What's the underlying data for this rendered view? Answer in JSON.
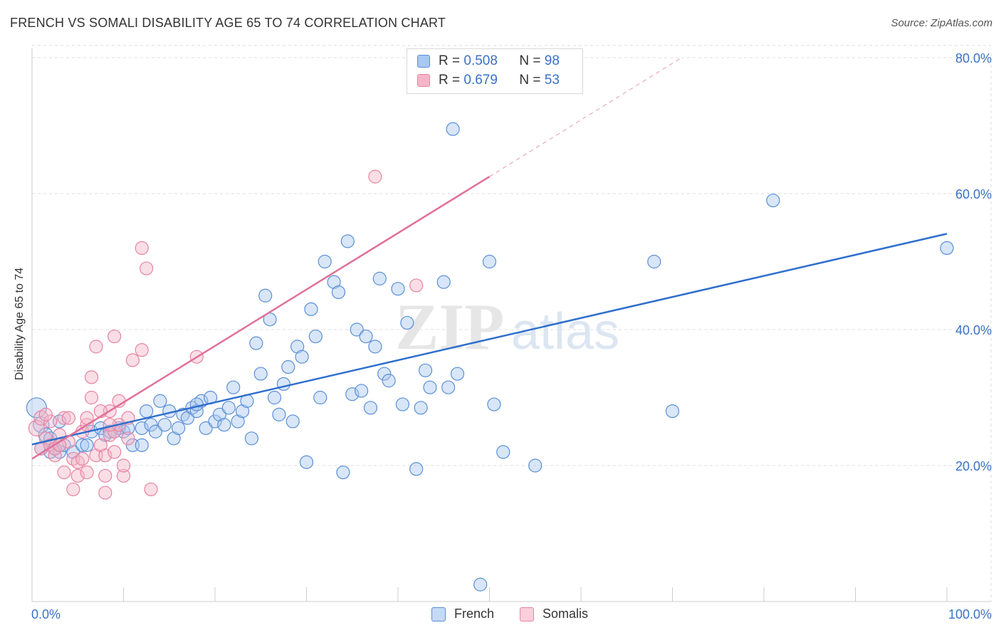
{
  "title": "FRENCH VS SOMALI DISABILITY AGE 65 TO 74 CORRELATION CHART",
  "source": "Source: ZipAtlas.com",
  "watermark": {
    "zip": "ZIP",
    "atlas": "atlas"
  },
  "legend_top": [
    {
      "r_label": "R =",
      "r_value": "0.508",
      "n_label": "N =",
      "n_value": "98"
    },
    {
      "r_label": "R =",
      "r_value": "0.679",
      "n_label": "N =",
      "n_value": "53"
    }
  ],
  "legend_bottom": [
    {
      "label": "French"
    },
    {
      "label": "Somalis"
    }
  ],
  "colors": {
    "french_fill": "#a9c7ef",
    "french_stroke": "#5b8fd6",
    "french_line": "#2f6fcc",
    "somali_fill": "#f5b5c8",
    "somali_stroke": "#e683a3",
    "somali_line": "#e0709a",
    "tick_label": "#3a72c4",
    "grid": "#dcdcdc"
  },
  "chart_data": {
    "type": "scatter",
    "title": "FRENCH VS SOMALI DISABILITY AGE 65 TO 74 CORRELATION CHART",
    "xlabel": "",
    "ylabel": "Disability Age 65 to 74",
    "xlim": [
      0,
      100
    ],
    "ylim": [
      0,
      82
    ],
    "x_tick_labels": [
      {
        "value": 0,
        "label": "0.0%"
      },
      {
        "value": 100,
        "label": "100.0%"
      }
    ],
    "y_tick_labels": [
      {
        "value": 20,
        "label": "20.0%"
      },
      {
        "value": 40,
        "label": "40.0%"
      },
      {
        "value": 60,
        "label": "60.0%"
      },
      {
        "value": 80,
        "label": "80.0%"
      }
    ],
    "x_minor_ticks": [
      0,
      10,
      20,
      30,
      40,
      50,
      60,
      70,
      80,
      90,
      100
    ],
    "grid": true,
    "legend_position": "top-center",
    "series": [
      {
        "name": "French",
        "r": 0.508,
        "n": 98,
        "trendline": {
          "x": [
            0,
            100
          ],
          "y": [
            23.1,
            54.1
          ],
          "style": "solid"
        },
        "points": [
          [
            0.5,
            28.5,
            14
          ],
          [
            1,
            26,
            11
          ],
          [
            1.5,
            24.5,
            10
          ],
          [
            1,
            22.5,
            9
          ],
          [
            2,
            22,
            9
          ],
          [
            2.5,
            22.5,
            9
          ],
          [
            3,
            22,
            9
          ],
          [
            3.5,
            23,
            9
          ],
          [
            4.5,
            22,
            9
          ],
          [
            5.5,
            23,
            9
          ],
          [
            6,
            23,
            9
          ],
          [
            6.5,
            25,
            9
          ],
          [
            7.5,
            25.5,
            9
          ],
          [
            8,
            24.5,
            9
          ],
          [
            8.5,
            25,
            9
          ],
          [
            9.5,
            25.5,
            9
          ],
          [
            10,
            25,
            9
          ],
          [
            10.5,
            25.5,
            9
          ],
          [
            11,
            23,
            9
          ],
          [
            12,
            25.5,
            9
          ],
          [
            12,
            23,
            9
          ],
          [
            12.5,
            28,
            9
          ],
          [
            13,
            26,
            9
          ],
          [
            13.5,
            25,
            9
          ],
          [
            14,
            29.5,
            9
          ],
          [
            14.5,
            26,
            9
          ],
          [
            15,
            28,
            9
          ],
          [
            15.5,
            24,
            9
          ],
          [
            16,
            25.5,
            9
          ],
          [
            16.5,
            27.5,
            9
          ],
          [
            17,
            27,
            9
          ],
          [
            17.5,
            28.5,
            9
          ],
          [
            18,
            28,
            9
          ],
          [
            18.5,
            29.5,
            9
          ],
          [
            19,
            25.5,
            9
          ],
          [
            19.5,
            30,
            9
          ],
          [
            20,
            26.5,
            9
          ],
          [
            20.5,
            27.5,
            9
          ],
          [
            21,
            26,
            9
          ],
          [
            21.5,
            28.5,
            9
          ],
          [
            22,
            31.5,
            9
          ],
          [
            22.5,
            26.5,
            9
          ],
          [
            23,
            28,
            9
          ],
          [
            23.5,
            29.5,
            9
          ],
          [
            24,
            24,
            9
          ],
          [
            24.5,
            38,
            9
          ],
          [
            25,
            33.5,
            9
          ],
          [
            25.5,
            45,
            9
          ],
          [
            26,
            41.5,
            9
          ],
          [
            26.5,
            30,
            9
          ],
          [
            27,
            27.5,
            9
          ],
          [
            27.5,
            32,
            9
          ],
          [
            28,
            34.5,
            9
          ],
          [
            28.5,
            26.5,
            9
          ],
          [
            29,
            37.5,
            9
          ],
          [
            29.5,
            36,
            9
          ],
          [
            30,
            20.5,
            9
          ],
          [
            30.5,
            43,
            9
          ],
          [
            31,
            39,
            9
          ],
          [
            31.5,
            30,
            9
          ],
          [
            32,
            50,
            9
          ],
          [
            33,
            47,
            9
          ],
          [
            33.5,
            45.5,
            9
          ],
          [
            34,
            19,
            9
          ],
          [
            34.5,
            53,
            9
          ],
          [
            35,
            30.5,
            9
          ],
          [
            35.5,
            40,
            9
          ],
          [
            36,
            31,
            9
          ],
          [
            36.5,
            39,
            9
          ],
          [
            37,
            28.5,
            9
          ],
          [
            37.5,
            37.5,
            9
          ],
          [
            38,
            47.5,
            9
          ],
          [
            38.5,
            33.5,
            9
          ],
          [
            39,
            32.5,
            9
          ],
          [
            40,
            46,
            9
          ],
          [
            40.5,
            29,
            9
          ],
          [
            41,
            41,
            9
          ],
          [
            42,
            19.5,
            9
          ],
          [
            42.5,
            28.5,
            9
          ],
          [
            43,
            34,
            9
          ],
          [
            43.5,
            31.5,
            9
          ],
          [
            45,
            47,
            9
          ],
          [
            45.5,
            31.5,
            9
          ],
          [
            46,
            69.5,
            9
          ],
          [
            46.5,
            33.5,
            9
          ],
          [
            49,
            2.5,
            9
          ],
          [
            50,
            50,
            9
          ],
          [
            50.5,
            29,
            9
          ],
          [
            51.5,
            22,
            9
          ],
          [
            55,
            20,
            9
          ],
          [
            68,
            50,
            9
          ],
          [
            70,
            28,
            9
          ],
          [
            81,
            59,
            9
          ],
          [
            100,
            52,
            9
          ],
          [
            2,
            24,
            9
          ],
          [
            3,
            26.5,
            9
          ],
          [
            9,
            25,
            9
          ],
          [
            18,
            29,
            9
          ]
        ]
      },
      {
        "name": "Somalis",
        "r": 0.679,
        "n": 53,
        "trendline": {
          "x": [
            0,
            50
          ],
          "y": [
            21.0,
            62.5
          ],
          "style": "solid",
          "extended_dashed_to": [
            71,
            80
          ]
        },
        "points": [
          [
            0.5,
            25.5,
            11
          ],
          [
            1,
            27,
            10
          ],
          [
            1.5,
            24,
            9
          ],
          [
            1,
            22.5,
            9
          ],
          [
            2,
            23,
            9
          ],
          [
            2,
            26.5,
            9
          ],
          [
            2.5,
            21.5,
            9
          ],
          [
            3,
            24.5,
            9
          ],
          [
            3.5,
            27,
            9
          ],
          [
            3.5,
            19,
            9
          ],
          [
            4,
            23.5,
            9
          ],
          [
            4.5,
            21,
            9
          ],
          [
            4.5,
            16.5,
            9
          ],
          [
            5,
            20.5,
            9
          ],
          [
            5,
            18.5,
            9
          ],
          [
            5.5,
            21,
            9
          ],
          [
            5.5,
            25,
            9
          ],
          [
            6,
            26,
            9
          ],
          [
            6,
            27,
            9
          ],
          [
            6.5,
            30,
            9
          ],
          [
            6.5,
            33,
            9
          ],
          [
            7,
            37.5,
            9
          ],
          [
            7,
            21.5,
            9
          ],
          [
            7.5,
            23,
            9
          ],
          [
            8,
            21.5,
            9
          ],
          [
            8,
            18.5,
            9
          ],
          [
            8,
            16,
            9
          ],
          [
            8.5,
            24.5,
            9
          ],
          [
            8.5,
            28,
            9
          ],
          [
            9,
            39,
            9
          ],
          [
            9,
            22,
            9
          ],
          [
            9,
            25,
            9
          ],
          [
            9.5,
            29.5,
            9
          ],
          [
            9.5,
            26,
            9
          ],
          [
            10,
            18.5,
            9
          ],
          [
            10,
            20,
            9
          ],
          [
            10.5,
            24,
            9
          ],
          [
            10.5,
            27,
            9
          ],
          [
            11,
            35.5,
            9
          ],
          [
            12,
            37,
            9
          ],
          [
            12,
            52,
            9
          ],
          [
            12.5,
            49,
            9
          ],
          [
            13,
            16.5,
            9
          ],
          [
            18,
            36,
            9
          ],
          [
            37.5,
            62.5,
            9
          ],
          [
            42,
            46.5,
            9
          ],
          [
            2.5,
            22.5,
            9
          ],
          [
            3,
            23,
            9
          ],
          [
            1.5,
            27.5,
            9
          ],
          [
            4,
            27,
            9
          ],
          [
            7.5,
            28,
            9
          ],
          [
            8.5,
            26,
            9
          ],
          [
            6,
            19,
            9
          ]
        ]
      }
    ]
  }
}
